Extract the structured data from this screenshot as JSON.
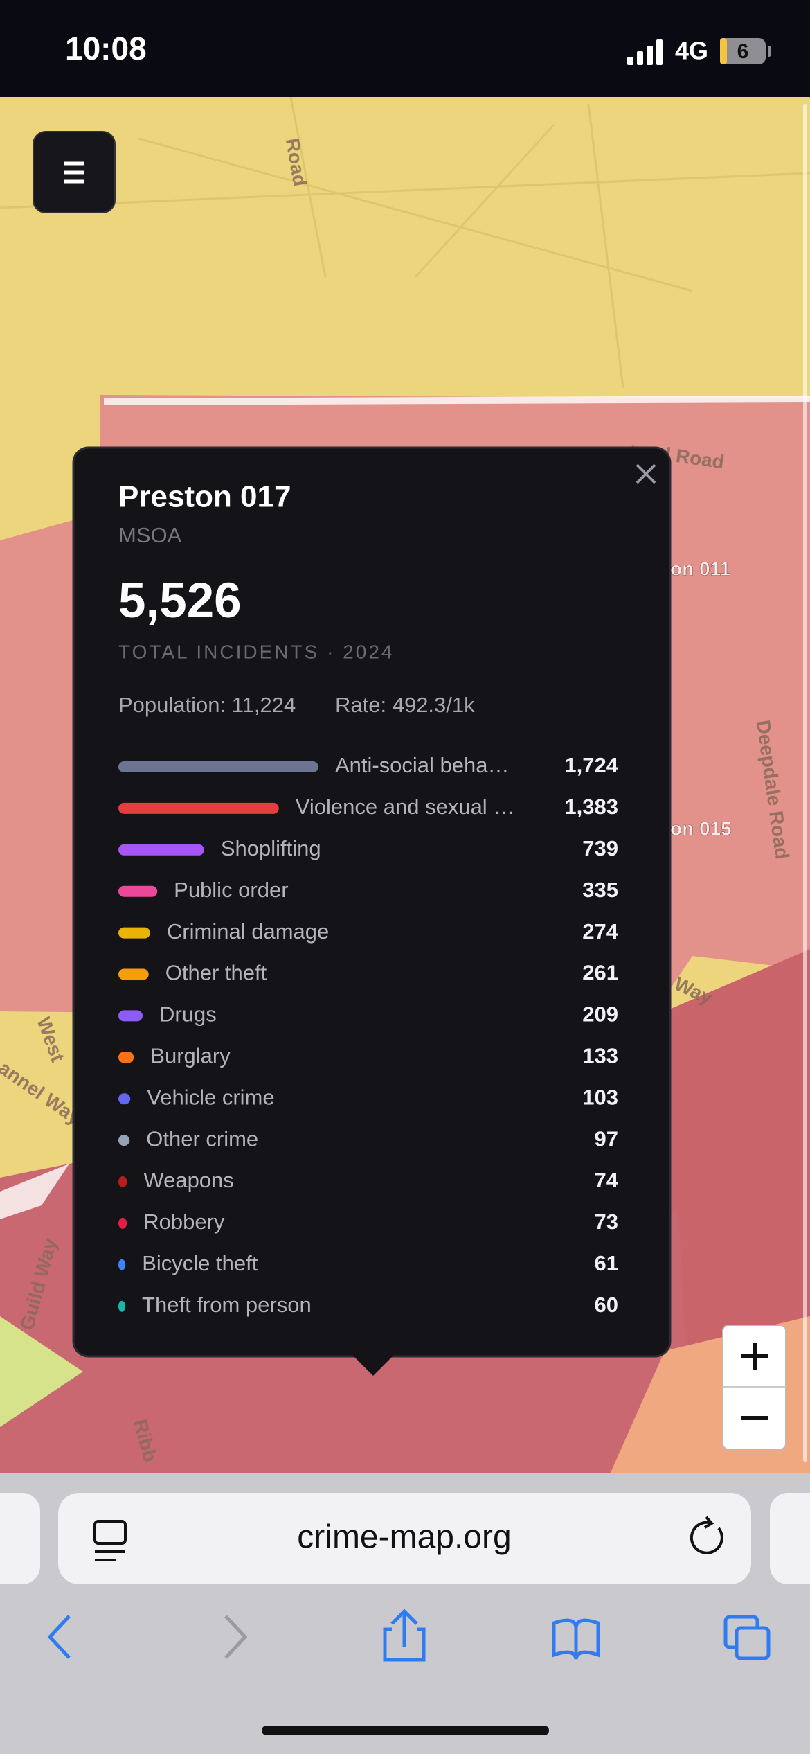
{
  "status_bar": {
    "time": "10:08",
    "network": "4G",
    "battery": "6"
  },
  "map": {
    "labels": [
      "Road",
      "pool Road",
      "on 011",
      "on 015",
      "Deepdale Road",
      "Way",
      "West",
      "annel Way",
      "Guild Way",
      "Ribb"
    ]
  },
  "popup": {
    "title": "Preston 017",
    "subtitle": "MSOA",
    "total": "5,526",
    "total_label": "TOTAL INCIDENTS · 2024",
    "population": "Population: 11,224",
    "rate": "Rate: 492.3/1k",
    "categories": [
      "Anti-social beha…",
      "Violence and sexual …",
      "Shoplifting",
      "Public order",
      "Criminal damage",
      "Other theft",
      "Drugs",
      "Burglary",
      "Vehicle crime",
      "Other crime",
      "Weapons",
      "Robbery",
      "Bicycle theft",
      "Theft from person"
    ],
    "values": [
      1724,
      1383,
      739,
      335,
      274,
      261,
      209,
      133,
      103,
      97,
      74,
      73,
      61,
      60
    ],
    "value_labels": [
      "1,724",
      "1,383",
      "739",
      "335",
      "274",
      "261",
      "209",
      "133",
      "103",
      "97",
      "74",
      "73",
      "61",
      "60"
    ],
    "colors": [
      "#6b7592",
      "#e53e3e",
      "#a855f7",
      "#ec4899",
      "#eab308",
      "#f59e0b",
      "#8b5cf6",
      "#f97316",
      "#6366f1",
      "#94a3b8",
      "#b91c1c",
      "#e11d48",
      "#3b82f6",
      "#14b8a6"
    ]
  },
  "browser": {
    "url": "crime-map.org"
  }
}
